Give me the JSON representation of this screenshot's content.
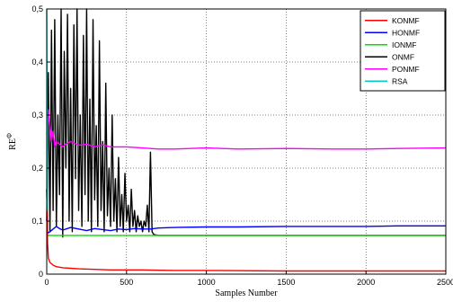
{
  "chart_data": {
    "type": "line",
    "xlabel": "Samples Number",
    "ylabel": "RE",
    "ylabel_superscript": "Φ",
    "xlim": [
      0,
      2500
    ],
    "ylim": [
      0,
      0.5
    ],
    "xticks": [
      0,
      500,
      1000,
      1500,
      2000,
      2500
    ],
    "xtick_labels": [
      "0",
      "500",
      "1000",
      "1500",
      "2000",
      "2500"
    ],
    "yticks": [
      0,
      0.1,
      0.2,
      0.3,
      0.4,
      0.5
    ],
    "ytick_labels": [
      "0",
      "0,1",
      "0,2",
      "0,3",
      "0,4",
      "0,5"
    ],
    "grid": true,
    "grid_style": "dotted",
    "legend_position": "top-right",
    "series": [
      {
        "name": "KONMF",
        "color": "#ff0000",
        "x": [
          0,
          5,
          10,
          20,
          40,
          60,
          100,
          150,
          200,
          300,
          400,
          600,
          800,
          1000,
          1500,
          2000,
          2500
        ],
        "y": [
          0.16,
          0.06,
          0.03,
          0.022,
          0.017,
          0.014,
          0.012,
          0.011,
          0.01,
          0.009,
          0.008,
          0.008,
          0.007,
          0.007,
          0.006,
          0.006,
          0.006
        ]
      },
      {
        "name": "HONMF",
        "color": "#0000ff",
        "x": [
          0,
          5,
          10,
          20,
          40,
          60,
          80,
          100,
          150,
          200,
          250,
          300,
          350,
          400,
          450,
          500,
          550,
          600,
          650,
          700,
          800,
          1000,
          1200,
          1500,
          1800,
          2000,
          2200,
          2500
        ],
        "y": [
          0.16,
          0.08,
          0.078,
          0.08,
          0.085,
          0.09,
          0.086,
          0.083,
          0.088,
          0.085,
          0.082,
          0.086,
          0.084,
          0.082,
          0.085,
          0.084,
          0.086,
          0.085,
          0.085,
          0.087,
          0.088,
          0.089,
          0.089,
          0.09,
          0.09,
          0.09,
          0.091,
          0.091
        ]
      },
      {
        "name": "IONMF",
        "color": "#00dd00",
        "x": [
          0,
          5,
          10,
          30,
          100,
          300,
          600,
          1000,
          1500,
          2000,
          2500
        ],
        "y": [
          0.08,
          0.074,
          0.073,
          0.073,
          0.073,
          0.073,
          0.073,
          0.073,
          0.073,
          0.073,
          0.073
        ]
      },
      {
        "name": "ONMF",
        "color": "#000000",
        "x": [
          0,
          10,
          20,
          30,
          40,
          50,
          60,
          70,
          80,
          90,
          100,
          110,
          120,
          130,
          140,
          150,
          160,
          170,
          180,
          190,
          200,
          210,
          220,
          230,
          240,
          250,
          260,
          270,
          280,
          290,
          300,
          310,
          320,
          330,
          340,
          350,
          360,
          370,
          380,
          390,
          400,
          410,
          420,
          430,
          440,
          450,
          460,
          470,
          480,
          490,
          500,
          510,
          520,
          530,
          540,
          550,
          560,
          570,
          580,
          590,
          600,
          610,
          620,
          630,
          640,
          650,
          660,
          670,
          680,
          700,
          800,
          1000,
          1500,
          2000,
          2500
        ],
        "y": [
          0.1,
          0.38,
          0.08,
          0.46,
          0.12,
          0.48,
          0.09,
          0.3,
          0.15,
          0.5,
          0.07,
          0.42,
          0.2,
          0.49,
          0.1,
          0.35,
          0.08,
          0.47,
          0.18,
          0.5,
          0.12,
          0.3,
          0.09,
          0.45,
          0.15,
          0.5,
          0.1,
          0.33,
          0.08,
          0.48,
          0.14,
          0.28,
          0.09,
          0.44,
          0.12,
          0.25,
          0.08,
          0.36,
          0.11,
          0.2,
          0.09,
          0.3,
          0.1,
          0.18,
          0.08,
          0.22,
          0.09,
          0.15,
          0.08,
          0.19,
          0.1,
          0.13,
          0.08,
          0.16,
          0.09,
          0.12,
          0.08,
          0.11,
          0.09,
          0.1,
          0.08,
          0.1,
          0.09,
          0.13,
          0.08,
          0.23,
          0.08,
          0.075,
          0.074,
          0.073,
          0.073,
          0.073,
          0.073,
          0.073,
          0.073
        ]
      },
      {
        "name": "PONMF",
        "color": "#ff00ff",
        "x": [
          0,
          5,
          10,
          20,
          30,
          40,
          50,
          60,
          80,
          100,
          120,
          150,
          200,
          250,
          300,
          350,
          400,
          500,
          600,
          700,
          800,
          1000,
          1200,
          1500,
          1800,
          2000,
          2200,
          2500
        ],
        "y": [
          0.1,
          0.2,
          0.31,
          0.28,
          0.25,
          0.27,
          0.24,
          0.25,
          0.245,
          0.24,
          0.245,
          0.25,
          0.243,
          0.245,
          0.24,
          0.244,
          0.24,
          0.24,
          0.238,
          0.236,
          0.236,
          0.238,
          0.236,
          0.237,
          0.236,
          0.236,
          0.237,
          0.238
        ]
      },
      {
        "name": "RSA",
        "color": "#00cccc",
        "x": [
          0,
          1,
          2,
          3,
          4
        ],
        "y": [
          0.5,
          0.4,
          0.3,
          0.2,
          0.12
        ]
      }
    ]
  }
}
